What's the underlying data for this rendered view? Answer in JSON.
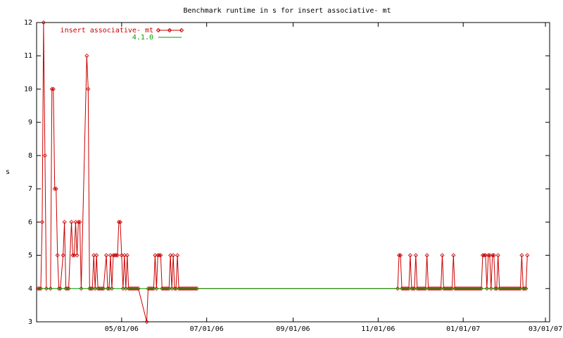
{
  "chart_data": {
    "type": "line",
    "title": "Benchmark runtime in s for insert associative-  mt",
    "y_label": "s",
    "xlim": [
      "2006-03-01",
      "2007-03-04"
    ],
    "xticks": [
      {
        "value": "2006-05-01",
        "label": "05/01/06"
      },
      {
        "value": "2006-07-01",
        "label": "07/01/06"
      },
      {
        "value": "2006-09-01",
        "label": "09/01/06"
      },
      {
        "value": "2006-11-01",
        "label": "11/01/06"
      },
      {
        "value": "2007-01-01",
        "label": "01/01/07"
      },
      {
        "value": "2007-03-01",
        "label": "03/01/07"
      }
    ],
    "ylim": [
      3,
      12
    ],
    "yticks": [
      3,
      4,
      5,
      6,
      7,
      8,
      9,
      10,
      11,
      12
    ],
    "grid": false,
    "legend": "top-left",
    "x": [
      "2006-03-02",
      "2006-03-03",
      "2006-03-04",
      "2006-03-05",
      "2006-03-06",
      "2006-03-07",
      "2006-03-08",
      "2006-03-11",
      "2006-03-12",
      "2006-03-13",
      "2006-03-14",
      "2006-03-15",
      "2006-03-16",
      "2006-03-17",
      "2006-03-18",
      "2006-03-20",
      "2006-03-21",
      "2006-03-22",
      "2006-03-23",
      "2006-03-24",
      "2006-03-26",
      "2006-03-27",
      "2006-03-28",
      "2006-03-29",
      "2006-03-30",
      "2006-03-31",
      "2006-04-01",
      "2006-04-02",
      "2006-04-06",
      "2006-04-07",
      "2006-04-08",
      "2006-04-09",
      "2006-04-10",
      "2006-04-11",
      "2006-04-12",
      "2006-04-13",
      "2006-04-14",
      "2006-04-15",
      "2006-04-16",
      "2006-04-17",
      "2006-04-18",
      "2006-04-20",
      "2006-04-21",
      "2006-04-22",
      "2006-04-23",
      "2006-04-24",
      "2006-04-25",
      "2006-04-26",
      "2006-04-27",
      "2006-04-28",
      "2006-04-29",
      "2006-04-30",
      "2006-05-01",
      "2006-05-02",
      "2006-05-03",
      "2006-05-04",
      "2006-05-05",
      "2006-05-06",
      "2006-05-07",
      "2006-05-08",
      "2006-05-09",
      "2006-05-10",
      "2006-05-11",
      "2006-05-12",
      "2006-05-13",
      "2006-05-19",
      "2006-05-20",
      "2006-05-21",
      "2006-05-22",
      "2006-05-23",
      "2006-05-24",
      "2006-05-25",
      "2006-05-26",
      "2006-05-27",
      "2006-05-28",
      "2006-05-29",
      "2006-05-30",
      "2006-05-31",
      "2006-06-01",
      "2006-06-02",
      "2006-06-03",
      "2006-06-04",
      "2006-06-05",
      "2006-06-06",
      "2006-06-07",
      "2006-06-08",
      "2006-06-09",
      "2006-06-10",
      "2006-06-11",
      "2006-06-12",
      "2006-06-13",
      "2006-06-14",
      "2006-06-15",
      "2006-06-16",
      "2006-06-17",
      "2006-06-18",
      "2006-06-19",
      "2006-06-20",
      "2006-06-21",
      "2006-06-22",
      "2006-06-23",
      "2006-06-24",
      "2006-11-15",
      "2006-11-16",
      "2006-11-17",
      "2006-11-18",
      "2006-11-19",
      "2006-11-20",
      "2006-11-21",
      "2006-11-22",
      "2006-11-23",
      "2006-11-24",
      "2006-11-25",
      "2006-11-26",
      "2006-11-27",
      "2006-11-28",
      "2006-11-29",
      "2006-11-30",
      "2006-12-01",
      "2006-12-02",
      "2006-12-03",
      "2006-12-04",
      "2006-12-05",
      "2006-12-06",
      "2006-12-07",
      "2006-12-08",
      "2006-12-09",
      "2006-12-10",
      "2006-12-11",
      "2006-12-12",
      "2006-12-13",
      "2006-12-14",
      "2006-12-15",
      "2006-12-16",
      "2006-12-17",
      "2006-12-18",
      "2006-12-19",
      "2006-12-20",
      "2006-12-21",
      "2006-12-22",
      "2006-12-23",
      "2006-12-24",
      "2006-12-25",
      "2006-12-26",
      "2006-12-27",
      "2006-12-28",
      "2006-12-29",
      "2006-12-30",
      "2006-12-31",
      "2007-01-01",
      "2007-01-02",
      "2007-01-03",
      "2007-01-04",
      "2007-01-05",
      "2007-01-06",
      "2007-01-07",
      "2007-01-08",
      "2007-01-09",
      "2007-01-10",
      "2007-01-11",
      "2007-01-12",
      "2007-01-13",
      "2007-01-14",
      "2007-01-15",
      "2007-01-16",
      "2007-01-17",
      "2007-01-18",
      "2007-01-19",
      "2007-01-20",
      "2007-01-21",
      "2007-01-22",
      "2007-01-23",
      "2007-01-24",
      "2007-01-25",
      "2007-01-26",
      "2007-01-27",
      "2007-01-28",
      "2007-01-29",
      "2007-01-30",
      "2007-01-31",
      "2007-02-01",
      "2007-02-02",
      "2007-02-03",
      "2007-02-04",
      "2007-02-05",
      "2007-02-06",
      "2007-02-07",
      "2007-02-08",
      "2007-02-09",
      "2007-02-10",
      "2007-02-11",
      "2007-02-12",
      "2007-02-13",
      "2007-02-14",
      "2007-02-15",
      "2007-02-16"
    ],
    "series": [
      {
        "name": "insert associative-  mt",
        "color": "#cc0000",
        "values": [
          4,
          4,
          4,
          6,
          12,
          8,
          4,
          4,
          10,
          10,
          7,
          7,
          5,
          4,
          4,
          5,
          6,
          4,
          4,
          4,
          6,
          5,
          5,
          6,
          5,
          6,
          6,
          4,
          11,
          10,
          4,
          4,
          4,
          5,
          4,
          5,
          4,
          4,
          4,
          4,
          4,
          5,
          4,
          4,
          5,
          4,
          5,
          5,
          5,
          5,
          6,
          6,
          5,
          4,
          5,
          4,
          5,
          4,
          4,
          4,
          4,
          4,
          4,
          4,
          4,
          3,
          4,
          4,
          4,
          4,
          4,
          5,
          4,
          5,
          5,
          5,
          4,
          4,
          4,
          4,
          4,
          4,
          5,
          4,
          5,
          4,
          4,
          5,
          4,
          4,
          4,
          4,
          4,
          4,
          4,
          4,
          4,
          4,
          4,
          4,
          4,
          4,
          4,
          5,
          5,
          4,
          4,
          4,
          4,
          4,
          4,
          5,
          4,
          4,
          4,
          5,
          4,
          4,
          4,
          4,
          4,
          4,
          4,
          5,
          4,
          4,
          4,
          4,
          4,
          4,
          4,
          4,
          4,
          4,
          5,
          4,
          4,
          4,
          4,
          4,
          4,
          4,
          5,
          4,
          4,
          4,
          4,
          4,
          4,
          4,
          4,
          4,
          4,
          4,
          4,
          4,
          4,
          4,
          4,
          4,
          4,
          4,
          4,
          5,
          5,
          5,
          4,
          5,
          5,
          4,
          5,
          5,
          4,
          4,
          5,
          4,
          4,
          4,
          4,
          4,
          4,
          4,
          4,
          4,
          4,
          4,
          4,
          4,
          4,
          4,
          4,
          5,
          4,
          4,
          4,
          5
        ]
      },
      {
        "name": "4.1.0",
        "color": "#00a000",
        "y": 4
      }
    ]
  }
}
